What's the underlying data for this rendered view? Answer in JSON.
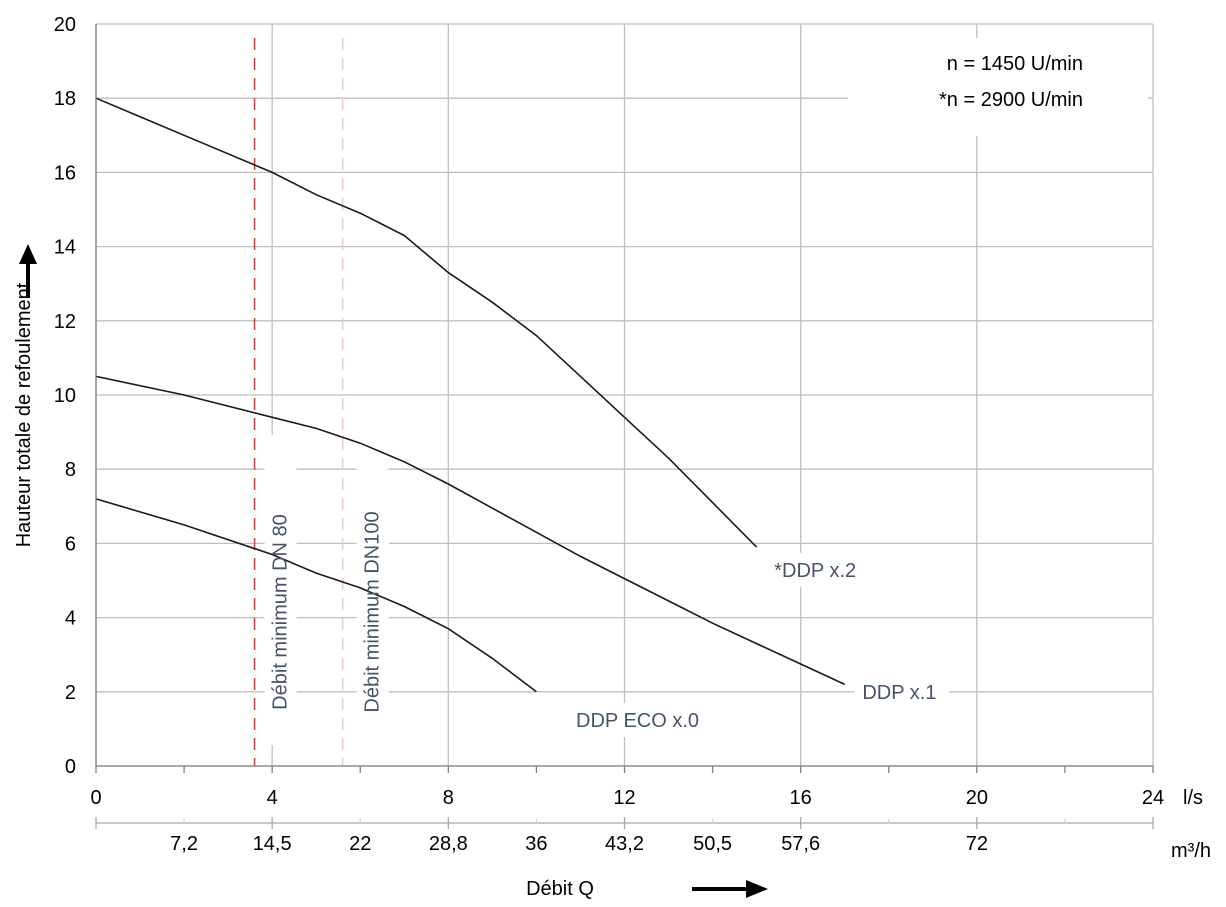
{
  "chart_data": {
    "type": "line",
    "title": "",
    "xlabel": "Débit Q",
    "ylabel": "Hauteur totale de refoulement",
    "xlim": [
      0,
      24
    ],
    "ylim": [
      0,
      20
    ],
    "x_unit": "l/s",
    "x2_unit": "m³/h",
    "x_ticks": [
      "0",
      "4",
      "8",
      "12",
      "16",
      "20",
      "24"
    ],
    "y_ticks": [
      "0",
      "2",
      "4",
      "6",
      "8",
      "10",
      "12",
      "14",
      "16",
      "18",
      "20"
    ],
    "x2_ticks": [
      {
        "label": "7,2",
        "x": 2
      },
      {
        "label": "14,5",
        "x": 4
      },
      {
        "label": "22",
        "x": 6
      },
      {
        "label": "28,8",
        "x": 8
      },
      {
        "label": "36",
        "x": 10
      },
      {
        "label": "43,2",
        "x": 12
      },
      {
        "label": "50,5",
        "x": 14
      },
      {
        "label": "57,6",
        "x": 16
      },
      {
        "label": "72",
        "x": 20
      }
    ],
    "grid": true,
    "info_box": [
      "n = 1450 U/min",
      "*n = 2900 U/min"
    ],
    "series": [
      {
        "name": "*DDP x.2",
        "x": [
          0,
          2,
          4,
          5,
          6,
          7,
          8,
          9,
          10,
          11,
          12,
          13,
          14,
          15
        ],
        "y": [
          18,
          17,
          16,
          15.4,
          14.9,
          14.3,
          13.3,
          12.5,
          11.6,
          10.5,
          9.4,
          8.3,
          7.1,
          5.9
        ]
      },
      {
        "name": "DDP x.1",
        "x": [
          0,
          2,
          4,
          5,
          6,
          7,
          8,
          9,
          10,
          11,
          12,
          13,
          14,
          15,
          16,
          17
        ],
        "y": [
          10.5,
          10,
          9.4,
          9.1,
          8.7,
          8.2,
          7.6,
          6.95,
          6.3,
          5.65,
          5.05,
          4.45,
          3.85,
          3.3,
          2.75,
          2.2
        ]
      },
      {
        "name": "DDP ECO x.0",
        "x": [
          0,
          2,
          4,
          5,
          6,
          7,
          8,
          9,
          10
        ],
        "y": [
          7.2,
          6.5,
          5.7,
          5.2,
          4.8,
          4.3,
          3.7,
          2.9,
          2.0
        ]
      }
    ],
    "curve_label_positions": [
      {
        "series": "*DDP x.2",
        "x": 15.4,
        "y": 5.1
      },
      {
        "series": "DDP x.1",
        "x": 17.4,
        "y": 1.8
      },
      {
        "series": "DDP ECO x.0",
        "x": 10.9,
        "y": 1.05
      }
    ],
    "vlines": [
      {
        "label": "Débit minimum DN 80",
        "x": 3.6,
        "color": "#e03c3c",
        "style": "dashed"
      },
      {
        "label": "Débit minimum DN100",
        "x": 5.6,
        "color": "#f4c9c9",
        "style": "dashed"
      }
    ]
  }
}
